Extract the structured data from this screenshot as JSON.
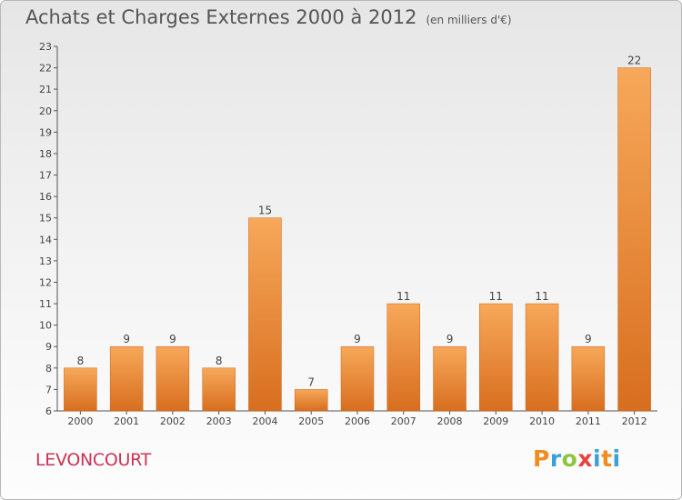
{
  "title": "Achats et Charges Externes 2000 à 2012",
  "unit": "(en milliers d'€)",
  "commune": "LEVONCOURT",
  "brand": {
    "letters": [
      "P",
      "r",
      "o",
      "x",
      "i",
      "t",
      "i"
    ]
  },
  "colors": {
    "bar_top": "#f7a85a",
    "bar_bottom": "#d86e1f",
    "title": "#555555",
    "commune": "#cc3355"
  },
  "chart_data": {
    "type": "bar",
    "title": "Achats et Charges Externes 2000 à 2012",
    "subtitle": "(en milliers d'€)",
    "categories": [
      "2000",
      "2001",
      "2002",
      "2003",
      "2004",
      "2005",
      "2006",
      "2007",
      "2008",
      "2009",
      "2010",
      "2011",
      "2012"
    ],
    "values": [
      8,
      9,
      9,
      8,
      15,
      7,
      9,
      11,
      9,
      11,
      11,
      9,
      22
    ],
    "data_labels": [
      "8",
      "9",
      "9",
      "8",
      "15",
      "7",
      "9",
      "11",
      "9",
      "11",
      "11",
      "9",
      "22"
    ],
    "ylim": [
      6,
      23
    ],
    "yticks": [
      "6",
      "7",
      "8",
      "9",
      "10",
      "11",
      "12",
      "13",
      "14",
      "15",
      "16",
      "17",
      "18",
      "19",
      "20",
      "21",
      "22",
      "23"
    ],
    "xlabel": "",
    "ylabel": "",
    "grid": false,
    "legend": "none"
  }
}
